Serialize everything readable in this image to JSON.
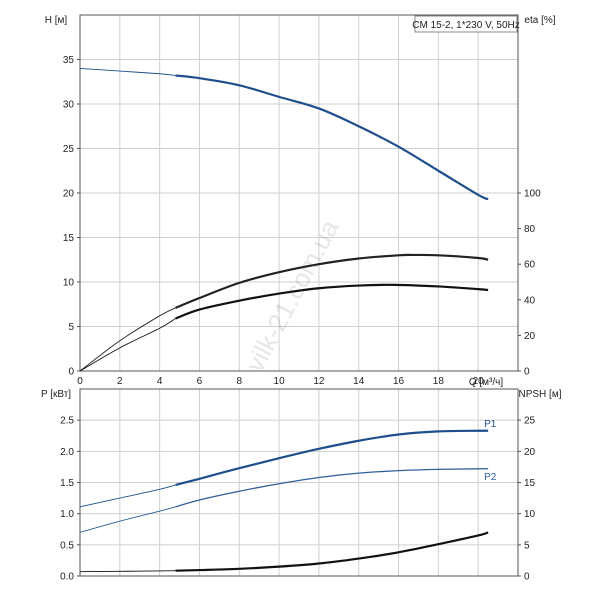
{
  "chart_data": [
    {
      "type": "line",
      "title": "CM 15-2, 1*230 V, 50Hz",
      "xlabel": "Q [м³/ч]",
      "ylabel": "H [м]",
      "ylabel_right": "eta [%]",
      "xlim": [
        0,
        22
      ],
      "ylim": [
        0,
        40
      ],
      "ylim_right": [
        0,
        200
      ],
      "x_ticks": [
        0,
        2,
        4,
        6,
        8,
        10,
        12,
        14,
        16,
        18,
        20
      ],
      "y_ticks": [
        0,
        5,
        10,
        15,
        20,
        25,
        30,
        35
      ],
      "y_ticks_right": [
        0,
        20,
        40,
        60,
        80,
        100
      ],
      "grid": true,
      "series": [
        {
          "name": "H",
          "axis": "left",
          "color": "#1f4e8c",
          "x": [
            0,
            2,
            4,
            4.8,
            6,
            8,
            10,
            12,
            14,
            16,
            18,
            20,
            20.5
          ],
          "y": [
            34,
            33.7,
            33.4,
            33.2,
            32.9,
            32.1,
            30.8,
            29.5,
            27.5,
            25.2,
            22.5,
            19.8,
            19.3
          ]
        },
        {
          "name": "",
          "axis": "right",
          "color": "#222222",
          "x": [
            0,
            2,
            4,
            4.8,
            6,
            8,
            10,
            12,
            14,
            16,
            16.8,
            18,
            20,
            20.5
          ],
          "y": [
            0,
            17,
            31,
            35.5,
            41,
            49.5,
            55.5,
            60,
            63.2,
            65,
            65.2,
            65,
            63.5,
            62.5
          ]
        },
        {
          "name": "",
          "axis": "right",
          "color": "#111111",
          "x": [
            0,
            2,
            4,
            4.8,
            6,
            8,
            10,
            12,
            14,
            15.8,
            18,
            20,
            20.5
          ],
          "y": [
            0,
            13,
            24,
            29.5,
            34.5,
            39.5,
            43.5,
            46.5,
            48,
            48.4,
            47.5,
            46,
            45.5
          ]
        }
      ]
    },
    {
      "type": "line",
      "title": "",
      "xlabel": "",
      "ylabel": "P [кВт]",
      "ylabel_right": "NPSH [м]",
      "xlim": [
        0,
        22
      ],
      "ylim": [
        0,
        3
      ],
      "ylim_right": [
        0,
        30
      ],
      "y_ticks": [
        0.0,
        0.5,
        1.0,
        1.5,
        2.0,
        2.5
      ],
      "y_tick_labels": [
        "0.0",
        "0.5",
        "1.0",
        "1.5",
        "2.0",
        "2.5"
      ],
      "y_ticks_right": [
        0,
        5,
        10,
        15,
        20,
        25
      ],
      "grid": true,
      "series": [
        {
          "name": "P1",
          "axis": "left",
          "color": "#1f4e8c",
          "x": [
            0,
            2,
            4,
            4.8,
            6,
            8,
            10,
            12,
            14,
            16,
            18,
            20,
            20.5
          ],
          "y": [
            1.11,
            1.25,
            1.39,
            1.46,
            1.56,
            1.73,
            1.89,
            2.04,
            2.17,
            2.27,
            2.32,
            2.33,
            2.33
          ]
        },
        {
          "name": "P2",
          "axis": "left",
          "color": "#2f5f9a",
          "x": [
            0,
            2,
            4,
            4.8,
            6,
            8,
            10,
            12,
            14,
            16,
            18,
            20,
            20.5
          ],
          "y": [
            0.7,
            0.88,
            1.04,
            1.11,
            1.22,
            1.36,
            1.48,
            1.58,
            1.65,
            1.69,
            1.71,
            1.72,
            1.72
          ]
        },
        {
          "name": "",
          "axis": "right",
          "color": "#111111",
          "x": [
            0,
            2,
            4,
            4.8,
            6,
            8,
            10,
            12,
            14,
            16,
            18,
            20,
            20.5
          ],
          "y": [
            0.7,
            0.75,
            0.82,
            0.85,
            0.95,
            1.15,
            1.5,
            2.0,
            2.8,
            3.8,
            5.1,
            6.5,
            7.0
          ]
        }
      ]
    }
  ],
  "watermark": "vilk-21.com.ua"
}
